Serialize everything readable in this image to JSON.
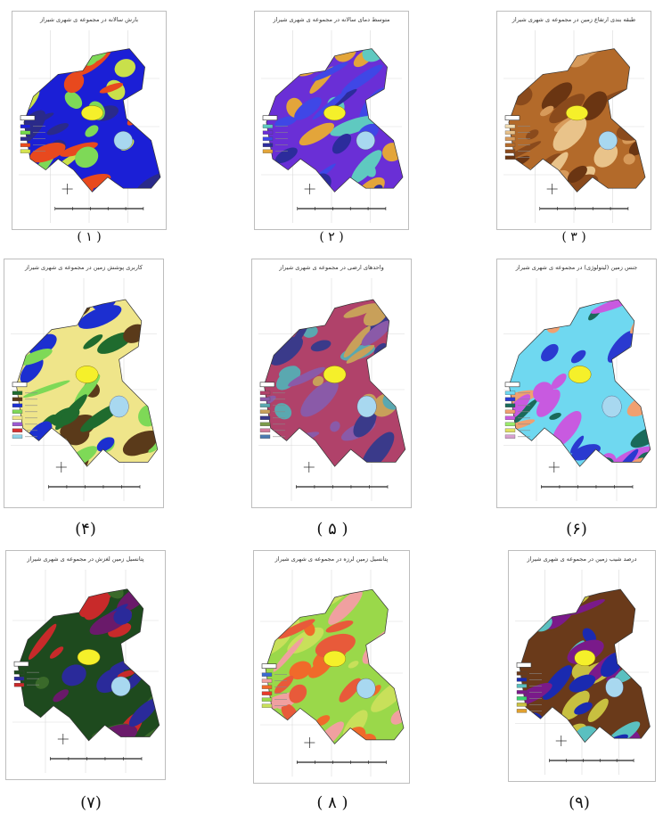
{
  "panels": [
    {
      "id": "map-panel-rainfall",
      "title": "بارش سالانه در مجموعه ی شهری شیراز",
      "caption": "( ۱ )",
      "colors": [
        "#1b1fd6",
        "#7ed957",
        "#e8491e",
        "#c9e04b",
        "#2a2a8a"
      ],
      "legend": [
        "#1b1fd6",
        "#74d94a",
        "#2f2f8f",
        "#e84a1c",
        "#d4e24f"
      ]
    },
    {
      "id": "map-panel-temperature",
      "title": "متوسط دمای سالانه در مجموعه ی شهری شیراز",
      "caption": "( ۲ )",
      "colors": [
        "#6a2fd6",
        "#e3a53a",
        "#3f47e6",
        "#5fc9c0",
        "#2c2c9c"
      ],
      "legend": [
        "#5fc9c0",
        "#6a2fd6",
        "#3f47e6",
        "#2c2c9c",
        "#e3a53a"
      ]
    },
    {
      "id": "map-panel-elevation",
      "title": "طبقه بندی ارتفاع زمین در مجموعه ی شهری شیراز",
      "caption": "( ۳ )",
      "colors": [
        "#b36a2a",
        "#d79a5a",
        "#8a4a1c",
        "#e9c38a",
        "#6a3512"
      ],
      "legend": [
        "#f1dcb2",
        "#e6c08a",
        "#d79a5a",
        "#b36a2a",
        "#8a4a1c",
        "#6a3512"
      ]
    },
    {
      "id": "map-panel-landcover",
      "title": "کاربری پوشش زمین در مجموعه ی شهری شیراز",
      "caption": "(۴)",
      "colors": [
        "#efe58a",
        "#1c2fd0",
        "#1f6b2e",
        "#7ed957",
        "#5a3a1a"
      ],
      "legend": [
        "#1f6b2e",
        "#5a3a1a",
        "#1c2fd0",
        "#7ed957",
        "#efe58a",
        "#9b59d0",
        "#d63030",
        "#8fd3e8"
      ]
    },
    {
      "id": "map-panel-geology",
      "title": "واحدهای ارضی در مجموعه ی شهری شیراز",
      "caption": "( ۵ )",
      "colors": [
        "#b0426a",
        "#8a5aa8",
        "#5aa8b0",
        "#c8a05a",
        "#3a3a8a"
      ],
      "legend": [
        "#b0426a",
        "#8a5aa8",
        "#5aa8b0",
        "#c8a05a",
        "#3a3a8a",
        "#7a9a4a",
        "#d07a9a",
        "#4a7ab0"
      ]
    },
    {
      "id": "map-panel-lithology",
      "title": "جنس زمین (لیتولوژی) در مجموعه ی شهری شیراز",
      "caption": "(۶)",
      "colors": [
        "#6fd8f0",
        "#1a6a5a",
        "#f0a070",
        "#2a3ad0",
        "#c85ae0"
      ],
      "legend": [
        "#6fd8f0",
        "#2a3ad0",
        "#1a6a5a",
        "#f0a070",
        "#c85ae0",
        "#9aea6a",
        "#e0e060",
        "#d8a0d0"
      ]
    },
    {
      "id": "map-panel-erosion",
      "title": "پتانسیل زمین لغزش در مجموعه ی شهری شیراز",
      "caption": "(۷)",
      "colors": [
        "#1e4a1e",
        "#2a2a9a",
        "#c82a2a",
        "#3a6a2a",
        "#6a1a6a"
      ],
      "legend": [
        "#1e4a1e",
        "#2a2a9a",
        "#c82a2a"
      ]
    },
    {
      "id": "map-panel-earthquake",
      "title": "پتانسیل زمین لرزه در مجموعه ی شهری شیراز",
      "caption": "( ۸ )",
      "colors": [
        "#9ad84a",
        "#f06a2a",
        "#e85a3a",
        "#f0a0a0",
        "#c8e05a"
      ],
      "legend": [
        "#3a6ad0",
        "#f0a0a0",
        "#f06a2a",
        "#e83a2a",
        "#9ad84a",
        "#c8e05a"
      ]
    },
    {
      "id": "map-panel-slope",
      "title": "درصد شیب زمین در مجموعه ی شهری شیراز",
      "caption": "(۹)",
      "colors": [
        "#6a3a1a",
        "#1a2ab0",
        "#5ac0c0",
        "#7a1a8a",
        "#c8c040"
      ],
      "legend": [
        "#6a3a1a",
        "#1a2ab0",
        "#5ac0c0",
        "#7a1a8a",
        "#3ad070",
        "#c8c040",
        "#e0a030"
      ]
    }
  ]
}
